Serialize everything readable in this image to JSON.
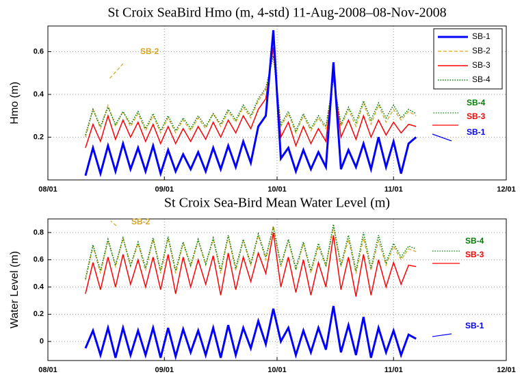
{
  "chart_data": [
    {
      "type": "line",
      "title": "St Croix SeaBird Hmo (m, 4-std) 11-Aug-2008–08-Nov-2008",
      "ylabel": "Hmo (m)",
      "x": [
        "08/11",
        "08/13",
        "08/15",
        "08/17",
        "08/19",
        "08/21",
        "08/23",
        "08/25",
        "08/27",
        "08/29",
        "08/31",
        "09/02",
        "09/04",
        "09/06",
        "09/08",
        "09/10",
        "09/12",
        "09/14",
        "09/16",
        "09/18",
        "09/20",
        "09/22",
        "09/24",
        "09/26",
        "09/28",
        "09/30",
        "10/02",
        "10/04",
        "10/06",
        "10/08",
        "10/10",
        "10/12",
        "10/14",
        "10/16",
        "10/18",
        "10/20",
        "10/22",
        "10/24",
        "10/26",
        "10/28",
        "10/30",
        "11/01",
        "11/03",
        "11/05",
        "11/07"
      ],
      "xlim": [
        "08/01",
        "12/01"
      ],
      "xticks": [
        "08/01",
        "09/01",
        "10/01",
        "11/01",
        "12/01"
      ],
      "ylim": [
        0,
        0.72
      ],
      "yticks": [
        0.2,
        0.4,
        0.6
      ],
      "grid": true,
      "legend": "upper right",
      "series": [
        {
          "name": "SB-1",
          "color": "#0000ff",
          "linestyle": "solid",
          "values": [
            0.02,
            0.15,
            0.03,
            0.16,
            0.04,
            0.17,
            0.05,
            0.15,
            0.04,
            0.16,
            0.03,
            0.14,
            0.04,
            0.12,
            0.05,
            0.13,
            0.04,
            0.15,
            0.05,
            0.16,
            0.06,
            0.18,
            0.08,
            0.25,
            0.3,
            0.7,
            0.1,
            0.15,
            0.04,
            0.14,
            0.05,
            0.13,
            0.06,
            0.55,
            0.05,
            0.14,
            0.06,
            0.17,
            0.05,
            0.2,
            0.06,
            0.18,
            0.03,
            0.17,
            0.2
          ]
        },
        {
          "name": "SB-2",
          "color": "#daa520",
          "linestyle": "dashed",
          "values": [
            0.2,
            0.33,
            0.24,
            0.35,
            0.25,
            0.32,
            0.25,
            0.31,
            0.23,
            0.3,
            0.22,
            0.29,
            0.22,
            0.28,
            0.23,
            0.29,
            0.24,
            0.31,
            0.25,
            0.32,
            0.27,
            0.34,
            0.29,
            0.37,
            0.42,
            0.6,
            0.25,
            0.31,
            0.22,
            0.3,
            0.23,
            0.29,
            0.24,
            0.48,
            0.25,
            0.33,
            0.25,
            0.36,
            0.26,
            0.35,
            0.27,
            0.33,
            0.28,
            0.32,
            0.3
          ]
        },
        {
          "name": "SB-3",
          "color": "#ff0000",
          "linestyle": "solid",
          "values": [
            0.15,
            0.26,
            0.18,
            0.3,
            0.19,
            0.28,
            0.2,
            0.27,
            0.18,
            0.26,
            0.17,
            0.25,
            0.17,
            0.24,
            0.18,
            0.25,
            0.19,
            0.27,
            0.2,
            0.28,
            0.22,
            0.3,
            0.24,
            0.33,
            0.38,
            0.62,
            0.2,
            0.27,
            0.16,
            0.25,
            0.17,
            0.24,
            0.18,
            0.5,
            0.2,
            0.28,
            0.19,
            0.3,
            0.2,
            0.28,
            0.21,
            0.27,
            0.22,
            0.26,
            0.25
          ]
        },
        {
          "name": "SB-4",
          "color": "#008000",
          "linestyle": "dotted",
          "values": [
            0.21,
            0.33,
            0.25,
            0.34,
            0.26,
            0.32,
            0.26,
            0.32,
            0.24,
            0.31,
            0.23,
            0.3,
            0.23,
            0.29,
            0.24,
            0.3,
            0.25,
            0.31,
            0.26,
            0.33,
            0.28,
            0.35,
            0.3,
            0.38,
            0.43,
            0.58,
            0.26,
            0.32,
            0.23,
            0.31,
            0.24,
            0.3,
            0.25,
            0.47,
            0.26,
            0.34,
            0.27,
            0.37,
            0.28,
            0.36,
            0.29,
            0.35,
            0.29,
            0.33,
            0.31
          ]
        }
      ]
    },
    {
      "type": "line",
      "title": "St Croix Sea-Bird Mean Water Level (m)",
      "ylabel": "Water Level (m)",
      "x": [
        "08/11",
        "08/13",
        "08/15",
        "08/17",
        "08/19",
        "08/21",
        "08/23",
        "08/25",
        "08/27",
        "08/29",
        "08/31",
        "09/02",
        "09/04",
        "09/06",
        "09/08",
        "09/10",
        "09/12",
        "09/14",
        "09/16",
        "09/18",
        "09/20",
        "09/22",
        "09/24",
        "09/26",
        "09/28",
        "09/30",
        "10/02",
        "10/04",
        "10/06",
        "10/08",
        "10/10",
        "10/12",
        "10/14",
        "10/16",
        "10/18",
        "10/20",
        "10/22",
        "10/24",
        "10/26",
        "10/28",
        "10/30",
        "11/01",
        "11/03",
        "11/05",
        "11/07"
      ],
      "xlim": [
        "08/01",
        "12/01"
      ],
      "xticks": [
        "08/01",
        "09/01",
        "10/01",
        "11/01",
        "12/01"
      ],
      "ylim": [
        -0.14,
        0.9
      ],
      "yticks": [
        0,
        0.2,
        0.4,
        0.6,
        0.8
      ],
      "grid": true,
      "series": [
        {
          "name": "SB-1",
          "color": "#0000ff",
          "linestyle": "solid",
          "values": [
            -0.05,
            0.08,
            -0.1,
            0.1,
            -0.12,
            0.1,
            -0.1,
            0.08,
            -0.1,
            0.1,
            -0.12,
            0.1,
            -0.11,
            0.09,
            -0.08,
            0.08,
            -0.1,
            0.1,
            -0.12,
            0.12,
            -0.1,
            0.1,
            -0.05,
            0.15,
            -0.02,
            0.24,
            0.0,
            0.1,
            -0.1,
            0.08,
            -0.08,
            0.1,
            -0.06,
            0.26,
            -0.08,
            0.12,
            -0.1,
            0.18,
            -0.12,
            0.1,
            -0.08,
            0.08,
            -0.1,
            0.05,
            0.02
          ]
        },
        {
          "name": "SB-2",
          "color": "#daa520",
          "linestyle": "dashed",
          "values": [
            0.45,
            0.7,
            0.5,
            0.74,
            0.55,
            0.76,
            0.55,
            0.72,
            0.52,
            0.75,
            0.5,
            0.76,
            0.5,
            0.72,
            0.55,
            0.74,
            0.56,
            0.75,
            0.5,
            0.77,
            0.52,
            0.74,
            0.56,
            0.78,
            0.6,
            0.85,
            0.55,
            0.74,
            0.52,
            0.72,
            0.5,
            0.7,
            0.55,
            0.84,
            0.55,
            0.75,
            0.5,
            0.76,
            0.52,
            0.74,
            0.56,
            0.7,
            0.6,
            0.68,
            0.66
          ]
        },
        {
          "name": "SB-3",
          "color": "#ff0000",
          "linestyle": "solid",
          "values": [
            0.35,
            0.58,
            0.38,
            0.62,
            0.4,
            0.64,
            0.42,
            0.6,
            0.4,
            0.62,
            0.38,
            0.64,
            0.35,
            0.62,
            0.4,
            0.6,
            0.42,
            0.63,
            0.34,
            0.65,
            0.38,
            0.62,
            0.44,
            0.65,
            0.5,
            0.8,
            0.4,
            0.62,
            0.36,
            0.6,
            0.34,
            0.58,
            0.4,
            0.78,
            0.38,
            0.62,
            0.33,
            0.64,
            0.34,
            0.6,
            0.4,
            0.58,
            0.42,
            0.56,
            0.55
          ]
        },
        {
          "name": "SB-4",
          "color": "#008000",
          "linestyle": "dotted",
          "values": [
            0.46,
            0.71,
            0.52,
            0.75,
            0.56,
            0.76,
            0.56,
            0.73,
            0.54,
            0.76,
            0.52,
            0.77,
            0.52,
            0.73,
            0.56,
            0.75,
            0.57,
            0.76,
            0.52,
            0.78,
            0.54,
            0.75,
            0.57,
            0.79,
            0.62,
            0.84,
            0.56,
            0.75,
            0.54,
            0.73,
            0.52,
            0.72,
            0.56,
            0.86,
            0.56,
            0.78,
            0.52,
            0.8,
            0.54,
            0.78,
            0.58,
            0.72,
            0.62,
            0.7,
            0.68
          ]
        }
      ]
    }
  ]
}
